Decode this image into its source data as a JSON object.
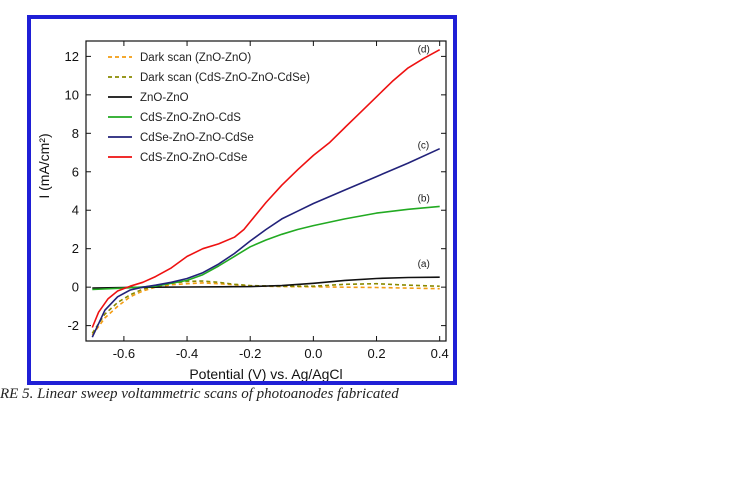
{
  "caption": "RE 5. Linear sweep voltammetric scans of photoanodes fabricated",
  "chart_data": {
    "type": "line",
    "title": "",
    "xlabel": "Potential (V) vs. Ag/AgCl",
    "ylabel": "I (mA/cm²)",
    "xlim": [
      -0.72,
      0.42
    ],
    "ylim": [
      -2.8,
      12.8
    ],
    "xticks": [
      -0.6,
      -0.4,
      -0.2,
      0.0,
      0.2,
      0.4
    ],
    "xtick_labels": [
      "-0.6",
      "-0.4",
      "-0.2",
      "0.0",
      "0.2",
      "0.4"
    ],
    "yticks": [
      -2,
      0,
      2,
      4,
      6,
      8,
      10,
      12
    ],
    "ytick_labels": [
      "-2",
      "0",
      "2",
      "4",
      "6",
      "8",
      "10",
      "12"
    ],
    "grid": false,
    "legend_position": "top-left",
    "series": [
      {
        "name": "Dark scan (ZnO-ZnO)",
        "color": "#f39c12",
        "dash": "dashed",
        "x": [
          -0.7,
          -0.66,
          -0.62,
          -0.58,
          -0.54,
          -0.5,
          -0.45,
          -0.4,
          -0.35,
          -0.3,
          -0.25,
          -0.2,
          -0.1,
          0.0,
          0.1,
          0.2,
          0.3,
          0.4
        ],
        "y": [
          -2.5,
          -1.6,
          -1.0,
          -0.5,
          -0.2,
          0.0,
          0.12,
          0.18,
          0.22,
          0.18,
          0.12,
          0.06,
          0.03,
          0.02,
          0.0,
          -0.02,
          -0.05,
          -0.08
        ]
      },
      {
        "name": "Dark scan (CdS-ZnO-ZnO-CdSe)",
        "color": "#8a8a00",
        "dash": "dashed",
        "x": [
          -0.7,
          -0.66,
          -0.62,
          -0.58,
          -0.54,
          -0.5,
          -0.45,
          -0.4,
          -0.35,
          -0.3,
          -0.25,
          -0.2,
          -0.1,
          0.0,
          0.1,
          0.2,
          0.3,
          0.4
        ],
        "y": [
          -2.4,
          -1.4,
          -0.8,
          -0.4,
          -0.1,
          0.05,
          0.2,
          0.3,
          0.32,
          0.25,
          0.15,
          0.08,
          0.05,
          0.05,
          0.15,
          0.18,
          0.1,
          0.05
        ]
      },
      {
        "name": "ZnO-ZnO",
        "color": "#111111",
        "dash": "solid",
        "x": [
          -0.7,
          -0.6,
          -0.5,
          -0.4,
          -0.3,
          -0.2,
          -0.1,
          0.0,
          0.1,
          0.2,
          0.3,
          0.4
        ],
        "y": [
          -0.05,
          -0.02,
          0.0,
          0.01,
          0.02,
          0.03,
          0.08,
          0.2,
          0.35,
          0.45,
          0.5,
          0.52
        ]
      },
      {
        "name": "CdS-ZnO-ZnO-CdS",
        "color": "#22aa22",
        "dash": "solid",
        "x": [
          -0.7,
          -0.6,
          -0.5,
          -0.4,
          -0.35,
          -0.3,
          -0.25,
          -0.2,
          -0.15,
          -0.1,
          -0.05,
          0.0,
          0.1,
          0.2,
          0.3,
          0.4
        ],
        "y": [
          -0.12,
          -0.05,
          0.05,
          0.35,
          0.65,
          1.1,
          1.6,
          2.1,
          2.45,
          2.75,
          3.0,
          3.2,
          3.55,
          3.85,
          4.05,
          4.2
        ]
      },
      {
        "name": "CdSe-ZnO-ZnO-CdSe",
        "color": "#22227a",
        "dash": "solid",
        "x": [
          -0.7,
          -0.66,
          -0.62,
          -0.58,
          -0.54,
          -0.5,
          -0.45,
          -0.4,
          -0.35,
          -0.3,
          -0.25,
          -0.2,
          -0.15,
          -0.1,
          -0.05,
          0.0,
          0.1,
          0.2,
          0.3,
          0.4
        ],
        "y": [
          -2.6,
          -1.2,
          -0.5,
          -0.15,
          0.0,
          0.1,
          0.25,
          0.45,
          0.75,
          1.2,
          1.75,
          2.4,
          3.0,
          3.55,
          3.95,
          4.35,
          5.05,
          5.75,
          6.45,
          7.2
        ]
      },
      {
        "name": "CdS-ZnO-ZnO-CdSe",
        "color": "#ee1111",
        "dash": "solid",
        "x": [
          -0.7,
          -0.68,
          -0.65,
          -0.62,
          -0.58,
          -0.54,
          -0.5,
          -0.45,
          -0.4,
          -0.35,
          -0.3,
          -0.25,
          -0.22,
          -0.2,
          -0.15,
          -0.1,
          -0.05,
          0.0,
          0.05,
          0.1,
          0.15,
          0.2,
          0.25,
          0.3,
          0.35,
          0.4
        ],
        "y": [
          -2.1,
          -1.3,
          -0.6,
          -0.2,
          0.05,
          0.25,
          0.55,
          1.0,
          1.6,
          2.0,
          2.25,
          2.6,
          3.0,
          3.4,
          4.4,
          5.3,
          6.1,
          6.85,
          7.5,
          8.3,
          9.1,
          9.9,
          10.7,
          11.4,
          11.9,
          12.35
        ]
      }
    ],
    "annotations": [
      {
        "text": "(a)",
        "x": 0.33,
        "y": 1.05
      },
      {
        "text": "(b)",
        "x": 0.33,
        "y": 4.45
      },
      {
        "text": "(c)",
        "x": 0.33,
        "y": 7.2
      },
      {
        "text": "(d)",
        "x": 0.33,
        "y": 12.2
      }
    ]
  }
}
